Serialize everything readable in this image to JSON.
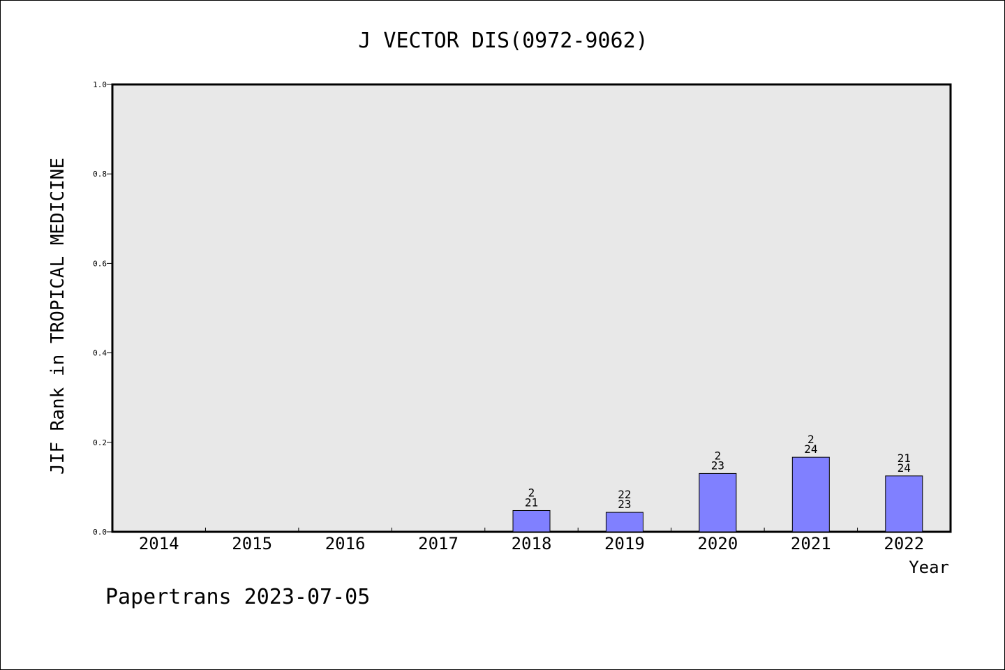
{
  "chart_data": {
    "type": "bar",
    "title": "J VECTOR DIS(0972-9062)",
    "xlabel": "Year",
    "ylabel": "JIF Rank in TROPICAL MEDICINE",
    "ylim": [
      0,
      1.0
    ],
    "yticks": [
      "0.0",
      "0.2",
      "0.4",
      "0.6",
      "0.8",
      "1.0"
    ],
    "grid": false,
    "categories": [
      "2014",
      "2015",
      "2016",
      "2017",
      "2018",
      "2019",
      "2020",
      "2021",
      "2022"
    ],
    "values": [
      null,
      null,
      null,
      null,
      0.0476,
      0.0435,
      0.1304,
      0.1667,
      0.125
    ],
    "bar_labels": [
      null,
      null,
      null,
      null,
      {
        "top": "2",
        "bottom": "21"
      },
      {
        "top": "22",
        "bottom": "23"
      },
      {
        "top": "2",
        "bottom": "23"
      },
      {
        "top": "2",
        "bottom": "24"
      },
      {
        "top": "21",
        "bottom": "24"
      }
    ],
    "colors": {
      "bar": "#8080ff",
      "plot_background": "#e8e8e8",
      "axis": "#000000"
    }
  },
  "footer": {
    "text": "Papertrans 2023-07-05"
  }
}
